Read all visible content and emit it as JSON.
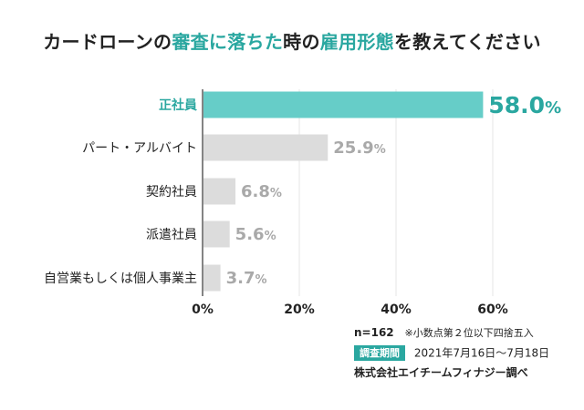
{
  "title": {
    "parts": [
      {
        "text": "カードローンの",
        "hl": false
      },
      {
        "text": "審査に落ちた",
        "hl": true
      },
      {
        "text": "時の",
        "hl": false
      },
      {
        "text": "雇用形態",
        "hl": true
      },
      {
        "text": "を教えてください",
        "hl": false
      }
    ]
  },
  "chart_data": {
    "type": "bar",
    "orientation": "horizontal",
    "categories": [
      "正社員",
      "パート・アルバイト",
      "契約社員",
      "派遣社員",
      "自営業もしくは個人事業主"
    ],
    "values": [
      58.0,
      25.9,
      6.8,
      5.6,
      3.7
    ],
    "value_labels": [
      "58.0",
      "25.9",
      "6.8",
      "5.6",
      "3.7"
    ],
    "value_unit": "%",
    "highlight_index": 0,
    "xlim": [
      0,
      60
    ],
    "xticks": [
      0,
      20,
      40,
      60
    ],
    "xtick_labels": [
      "0%",
      "20%",
      "40%",
      "60%"
    ],
    "grid": true,
    "colors": {
      "highlight": "#66cdc8",
      "default": "#dcdcdc",
      "highlight_text": "#2aa7a0",
      "default_text": "#a9a9a9"
    }
  },
  "notes": {
    "n": "n=162",
    "rounding_note": "※小数点第２位以下四捨五入",
    "period_label": "調査期間",
    "period_value": "2021年7月16日〜7月18日",
    "company": "株式会社エイチームフィナジー調べ"
  }
}
